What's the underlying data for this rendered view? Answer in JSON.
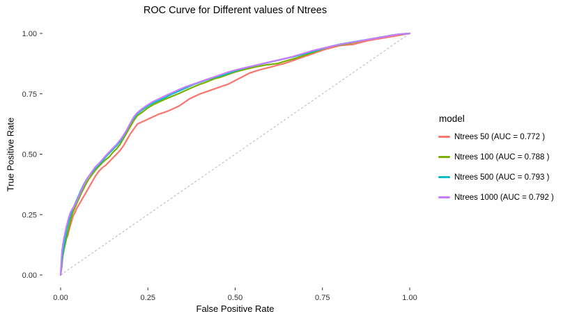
{
  "chart_data": {
    "type": "line",
    "title": "ROC Curve for Different values of Ntrees",
    "xlabel": "False Positive Rate",
    "ylabel": "True Positive Rate",
    "xlim": [
      0,
      1
    ],
    "ylim": [
      0,
      1
    ],
    "x_ticks": [
      "0.00",
      "0.25",
      "0.50",
      "0.75",
      "1.00"
    ],
    "x_tick_values": [
      0,
      0.25,
      0.5,
      0.75,
      1
    ],
    "y_ticks": [
      "0.00",
      "0.25",
      "0.50",
      "0.75",
      "1.00"
    ],
    "y_tick_values": [
      0,
      0.25,
      0.5,
      0.75,
      1
    ],
    "grid": false,
    "background_color": "#ffffff",
    "tick_color": "#333333",
    "axis_text_color": "#303030",
    "legend_position": "right",
    "legend_title": "model",
    "reference_line": {
      "style": "dashed",
      "color": "#b3b3b3",
      "from": [
        0,
        0
      ],
      "to": [
        1,
        1
      ]
    },
    "series": [
      {
        "name": "Ntrees 50 (AUC = 0.772 )",
        "auc": 0.772,
        "color": "#F8766D",
        "points": [
          [
            0,
            0
          ],
          [
            0.004,
            0.04
          ],
          [
            0.006,
            0.08
          ],
          [
            0.008,
            0.105
          ],
          [
            0.012,
            0.125
          ],
          [
            0.016,
            0.15
          ],
          [
            0.02,
            0.16
          ],
          [
            0.024,
            0.185
          ],
          [
            0.028,
            0.205
          ],
          [
            0.032,
            0.225
          ],
          [
            0.036,
            0.245
          ],
          [
            0.04,
            0.255
          ],
          [
            0.046,
            0.275
          ],
          [
            0.05,
            0.285
          ],
          [
            0.056,
            0.3
          ],
          [
            0.062,
            0.315
          ],
          [
            0.07,
            0.335
          ],
          [
            0.078,
            0.355
          ],
          [
            0.086,
            0.375
          ],
          [
            0.094,
            0.395
          ],
          [
            0.1,
            0.41
          ],
          [
            0.11,
            0.43
          ],
          [
            0.12,
            0.445
          ],
          [
            0.13,
            0.455
          ],
          [
            0.14,
            0.47
          ],
          [
            0.15,
            0.485
          ],
          [
            0.16,
            0.5
          ],
          [
            0.17,
            0.515
          ],
          [
            0.18,
            0.535
          ],
          [
            0.19,
            0.56
          ],
          [
            0.2,
            0.585
          ],
          [
            0.21,
            0.605
          ],
          [
            0.22,
            0.625
          ],
          [
            0.235,
            0.635
          ],
          [
            0.25,
            0.645
          ],
          [
            0.265,
            0.655
          ],
          [
            0.28,
            0.665
          ],
          [
            0.295,
            0.672
          ],
          [
            0.31,
            0.68
          ],
          [
            0.325,
            0.69
          ],
          [
            0.34,
            0.7
          ],
          [
            0.355,
            0.715
          ],
          [
            0.37,
            0.73
          ],
          [
            0.385,
            0.74
          ],
          [
            0.4,
            0.75
          ],
          [
            0.42,
            0.76
          ],
          [
            0.44,
            0.77
          ],
          [
            0.46,
            0.78
          ],
          [
            0.48,
            0.79
          ],
          [
            0.5,
            0.805
          ],
          [
            0.52,
            0.82
          ],
          [
            0.54,
            0.835
          ],
          [
            0.56,
            0.845
          ],
          [
            0.58,
            0.853
          ],
          [
            0.6,
            0.86
          ],
          [
            0.62,
            0.868
          ],
          [
            0.64,
            0.875
          ],
          [
            0.66,
            0.885
          ],
          [
            0.68,
            0.895
          ],
          [
            0.7,
            0.905
          ],
          [
            0.72,
            0.915
          ],
          [
            0.74,
            0.925
          ],
          [
            0.76,
            0.935
          ],
          [
            0.78,
            0.942
          ],
          [
            0.8,
            0.95
          ],
          [
            0.84,
            0.955
          ],
          [
            0.88,
            0.97
          ],
          [
            0.92,
            0.98
          ],
          [
            0.96,
            0.99
          ],
          [
            1,
            1
          ]
        ]
      },
      {
        "name": "Ntrees 100 (AUC = 0.788 )",
        "auc": 0.788,
        "color": "#7CAE00",
        "points": [
          [
            0,
            0
          ],
          [
            0.003,
            0.045
          ],
          [
            0.006,
            0.075
          ],
          [
            0.009,
            0.1
          ],
          [
            0.012,
            0.12
          ],
          [
            0.015,
            0.14
          ],
          [
            0.018,
            0.16
          ],
          [
            0.022,
            0.185
          ],
          [
            0.026,
            0.21
          ],
          [
            0.03,
            0.235
          ],
          [
            0.034,
            0.255
          ],
          [
            0.04,
            0.275
          ],
          [
            0.046,
            0.295
          ],
          [
            0.052,
            0.315
          ],
          [
            0.058,
            0.335
          ],
          [
            0.065,
            0.355
          ],
          [
            0.072,
            0.375
          ],
          [
            0.08,
            0.395
          ],
          [
            0.09,
            0.415
          ],
          [
            0.1,
            0.435
          ],
          [
            0.11,
            0.45
          ],
          [
            0.12,
            0.465
          ],
          [
            0.13,
            0.478
          ],
          [
            0.14,
            0.49
          ],
          [
            0.15,
            0.508
          ],
          [
            0.16,
            0.522
          ],
          [
            0.17,
            0.54
          ],
          [
            0.18,
            0.565
          ],
          [
            0.19,
            0.59
          ],
          [
            0.2,
            0.615
          ],
          [
            0.21,
            0.64
          ],
          [
            0.22,
            0.66
          ],
          [
            0.235,
            0.675
          ],
          [
            0.25,
            0.692
          ],
          [
            0.265,
            0.705
          ],
          [
            0.28,
            0.715
          ],
          [
            0.3,
            0.728
          ],
          [
            0.32,
            0.74
          ],
          [
            0.34,
            0.752
          ],
          [
            0.36,
            0.765
          ],
          [
            0.38,
            0.778
          ],
          [
            0.4,
            0.79
          ],
          [
            0.42,
            0.8
          ],
          [
            0.44,
            0.812
          ],
          [
            0.46,
            0.82
          ],
          [
            0.48,
            0.83
          ],
          [
            0.5,
            0.84
          ],
          [
            0.53,
            0.852
          ],
          [
            0.56,
            0.862
          ],
          [
            0.59,
            0.87
          ],
          [
            0.62,
            0.875
          ],
          [
            0.65,
            0.888
          ],
          [
            0.68,
            0.9
          ],
          [
            0.71,
            0.915
          ],
          [
            0.74,
            0.93
          ],
          [
            0.77,
            0.945
          ],
          [
            0.8,
            0.952
          ],
          [
            0.84,
            0.962
          ],
          [
            0.88,
            0.975
          ],
          [
            0.92,
            0.985
          ],
          [
            0.96,
            0.995
          ],
          [
            1,
            1
          ]
        ]
      },
      {
        "name": "Ntrees 500 (AUC = 0.793 )",
        "auc": 0.793,
        "color": "#00BFC4",
        "points": [
          [
            0,
            0
          ],
          [
            0.003,
            0.05
          ],
          [
            0.006,
            0.09
          ],
          [
            0.009,
            0.115
          ],
          [
            0.012,
            0.14
          ],
          [
            0.015,
            0.165
          ],
          [
            0.018,
            0.19
          ],
          [
            0.022,
            0.215
          ],
          [
            0.026,
            0.235
          ],
          [
            0.03,
            0.255
          ],
          [
            0.035,
            0.275
          ],
          [
            0.04,
            0.29
          ],
          [
            0.046,
            0.31
          ],
          [
            0.052,
            0.33
          ],
          [
            0.058,
            0.35
          ],
          [
            0.065,
            0.372
          ],
          [
            0.072,
            0.39
          ],
          [
            0.08,
            0.408
          ],
          [
            0.09,
            0.425
          ],
          [
            0.1,
            0.443
          ],
          [
            0.11,
            0.458
          ],
          [
            0.12,
            0.472
          ],
          [
            0.13,
            0.49
          ],
          [
            0.14,
            0.505
          ],
          [
            0.15,
            0.52
          ],
          [
            0.16,
            0.535
          ],
          [
            0.17,
            0.552
          ],
          [
            0.18,
            0.575
          ],
          [
            0.19,
            0.6
          ],
          [
            0.2,
            0.628
          ],
          [
            0.21,
            0.65
          ],
          [
            0.22,
            0.668
          ],
          [
            0.235,
            0.685
          ],
          [
            0.25,
            0.7
          ],
          [
            0.265,
            0.712
          ],
          [
            0.28,
            0.722
          ],
          [
            0.3,
            0.735
          ],
          [
            0.32,
            0.75
          ],
          [
            0.34,
            0.762
          ],
          [
            0.36,
            0.775
          ],
          [
            0.38,
            0.788
          ],
          [
            0.4,
            0.798
          ],
          [
            0.42,
            0.808
          ],
          [
            0.44,
            0.818
          ],
          [
            0.46,
            0.825
          ],
          [
            0.48,
            0.835
          ],
          [
            0.5,
            0.845
          ],
          [
            0.53,
            0.858
          ],
          [
            0.56,
            0.868
          ],
          [
            0.59,
            0.878
          ],
          [
            0.62,
            0.888
          ],
          [
            0.65,
            0.898
          ],
          [
            0.68,
            0.908
          ],
          [
            0.71,
            0.92
          ],
          [
            0.74,
            0.932
          ],
          [
            0.77,
            0.945
          ],
          [
            0.8,
            0.955
          ],
          [
            0.84,
            0.965
          ],
          [
            0.88,
            0.975
          ],
          [
            0.92,
            0.985
          ],
          [
            0.96,
            0.995
          ],
          [
            1,
            1
          ]
        ]
      },
      {
        "name": "Ntrees 1000 (AUC = 0.792 )",
        "auc": 0.792,
        "color": "#C77CFF",
        "points": [
          [
            0,
            0
          ],
          [
            0.002,
            0.06
          ],
          [
            0.004,
            0.1
          ],
          [
            0.007,
            0.13
          ],
          [
            0.01,
            0.155
          ],
          [
            0.013,
            0.175
          ],
          [
            0.016,
            0.195
          ],
          [
            0.02,
            0.22
          ],
          [
            0.024,
            0.24
          ],
          [
            0.028,
            0.258
          ],
          [
            0.033,
            0.272
          ],
          [
            0.04,
            0.288
          ],
          [
            0.046,
            0.305
          ],
          [
            0.052,
            0.325
          ],
          [
            0.058,
            0.345
          ],
          [
            0.065,
            0.368
          ],
          [
            0.072,
            0.388
          ],
          [
            0.08,
            0.408
          ],
          [
            0.09,
            0.428
          ],
          [
            0.1,
            0.448
          ],
          [
            0.11,
            0.462
          ],
          [
            0.12,
            0.478
          ],
          [
            0.13,
            0.495
          ],
          [
            0.14,
            0.51
          ],
          [
            0.15,
            0.525
          ],
          [
            0.16,
            0.54
          ],
          [
            0.17,
            0.558
          ],
          [
            0.18,
            0.578
          ],
          [
            0.19,
            0.602
          ],
          [
            0.2,
            0.63
          ],
          [
            0.21,
            0.655
          ],
          [
            0.22,
            0.672
          ],
          [
            0.235,
            0.69
          ],
          [
            0.25,
            0.705
          ],
          [
            0.265,
            0.718
          ],
          [
            0.28,
            0.728
          ],
          [
            0.3,
            0.742
          ],
          [
            0.32,
            0.755
          ],
          [
            0.34,
            0.768
          ],
          [
            0.36,
            0.78
          ],
          [
            0.38,
            0.79
          ],
          [
            0.4,
            0.8
          ],
          [
            0.42,
            0.81
          ],
          [
            0.44,
            0.82
          ],
          [
            0.46,
            0.83
          ],
          [
            0.48,
            0.84
          ],
          [
            0.51,
            0.852
          ],
          [
            0.54,
            0.862
          ],
          [
            0.57,
            0.872
          ],
          [
            0.6,
            0.882
          ],
          [
            0.63,
            0.892
          ],
          [
            0.66,
            0.902
          ],
          [
            0.69,
            0.915
          ],
          [
            0.72,
            0.928
          ],
          [
            0.75,
            0.938
          ],
          [
            0.78,
            0.948
          ],
          [
            0.81,
            0.957
          ],
          [
            0.85,
            0.967
          ],
          [
            0.89,
            0.977
          ],
          [
            0.93,
            0.987
          ],
          [
            0.97,
            0.997
          ],
          [
            1,
            1
          ]
        ]
      }
    ]
  }
}
